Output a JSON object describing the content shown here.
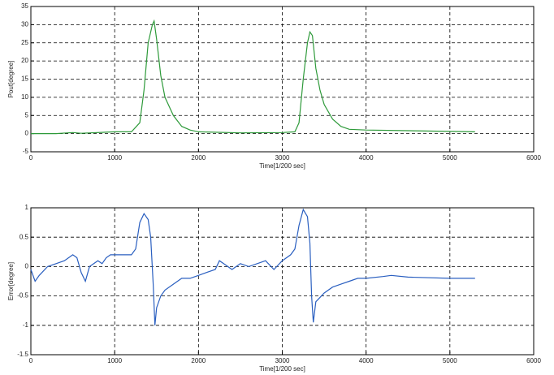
{
  "chart_data": [
    {
      "type": "line",
      "xlabel": "Time[1/200 sec]",
      "ylabel": "Pout[degree]",
      "xlim": [
        0,
        6000
      ],
      "xticks": [
        0,
        1000,
        2000,
        3000,
        4000,
        5000,
        6000
      ],
      "ylim": [
        -5,
        35
      ],
      "yticks": [
        -5,
        0,
        5,
        10,
        15,
        20,
        25,
        30,
        35
      ],
      "grid": true,
      "series": [
        {
          "color": "#2e9a3a",
          "x": [
            0,
            300,
            500,
            600,
            1000,
            1200,
            1300,
            1350,
            1400,
            1450,
            1470,
            1500,
            1550,
            1600,
            1700,
            1800,
            1900,
            2000,
            2500,
            3000,
            3150,
            3200,
            3250,
            3300,
            3330,
            3360,
            3400,
            3450,
            3500,
            3600,
            3700,
            3800,
            4000,
            4500,
            5000,
            5300
          ],
          "values": [
            0,
            0,
            0.3,
            0.1,
            0.5,
            0.5,
            3,
            12,
            25,
            30,
            31,
            26,
            16,
            10,
            5,
            2,
            1,
            0.5,
            0.2,
            0.3,
            0.5,
            3,
            15,
            25,
            28,
            27,
            18,
            12,
            8,
            4,
            2,
            1.2,
            1,
            0.8,
            0.6,
            0.5
          ]
        }
      ]
    },
    {
      "type": "line",
      "xlabel": "Time[1/200 sec]",
      "ylabel": "Error[degree]",
      "xlim": [
        0,
        6000
      ],
      "xticks": [
        0,
        1000,
        2000,
        3000,
        4000,
        5000,
        6000
      ],
      "ylim": [
        -1.5,
        1
      ],
      "yticks": [
        -1.5,
        -1,
        -0.5,
        0,
        0.5,
        1
      ],
      "grid": true,
      "series": [
        {
          "color": "#2a5fc0",
          "x": [
            0,
            50,
            100,
            200,
            300,
            400,
            500,
            550,
            600,
            650,
            700,
            800,
            850,
            900,
            950,
            1000,
            1200,
            1250,
            1300,
            1350,
            1400,
            1430,
            1460,
            1480,
            1500,
            1550,
            1600,
            1700,
            1800,
            1900,
            2000,
            2100,
            2200,
            2250,
            2300,
            2400,
            2500,
            2600,
            2700,
            2800,
            2900,
            3000,
            3100,
            3150,
            3200,
            3250,
            3300,
            3330,
            3350,
            3370,
            3400,
            3500,
            3600,
            3700,
            3800,
            3900,
            4000,
            4200,
            4300,
            4500,
            5000,
            5300
          ],
          "values": [
            -0.05,
            -0.25,
            -0.15,
            0,
            0.05,
            0.1,
            0.2,
            0.15,
            -0.1,
            -0.25,
            0,
            0.1,
            0.05,
            0.15,
            0.2,
            0.2,
            0.2,
            0.3,
            0.75,
            0.9,
            0.8,
            0.5,
            -0.3,
            -1.0,
            -0.7,
            -0.5,
            -0.4,
            -0.3,
            -0.2,
            -0.2,
            -0.15,
            -0.1,
            -0.05,
            0.1,
            0.05,
            -0.05,
            0.05,
            0,
            0.05,
            0.1,
            -0.05,
            0.1,
            0.2,
            0.3,
            0.7,
            0.97,
            0.85,
            0.4,
            -0.5,
            -0.95,
            -0.6,
            -0.45,
            -0.35,
            -0.3,
            -0.25,
            -0.2,
            -0.2,
            -0.17,
            -0.15,
            -0.18,
            -0.2,
            -0.2
          ]
        }
      ]
    }
  ]
}
